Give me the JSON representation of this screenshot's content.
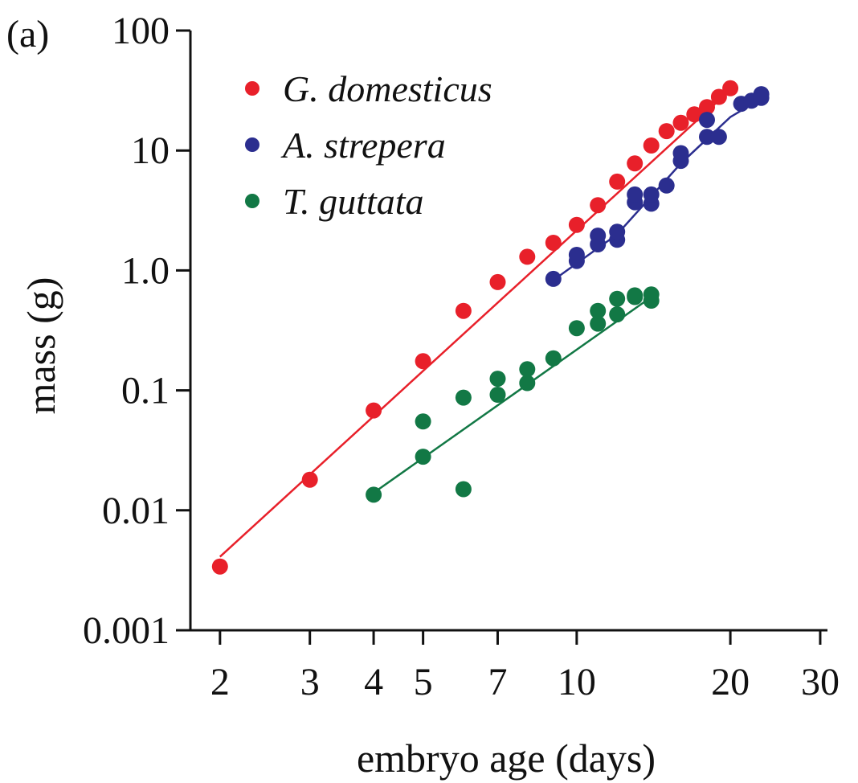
{
  "panel_label": "(a)",
  "chart_data": {
    "type": "scatter",
    "xlabel": "embryo age (days)",
    "ylabel": "mass (g)",
    "x_scale": "log",
    "y_scale": "log",
    "xlim": [
      1.75,
      31
    ],
    "ylim": [
      0.001,
      100
    ],
    "x_ticks": [
      2,
      3,
      4,
      5,
      7,
      10,
      20,
      30
    ],
    "x_tick_labels": [
      "2",
      "3",
      "4",
      "5",
      "7",
      "10",
      "20",
      "30"
    ],
    "y_ticks": [
      0.001,
      0.01,
      0.1,
      1,
      10,
      100
    ],
    "y_tick_labels": [
      "0.001",
      "0.01",
      "0.1",
      "1.0",
      "10",
      "100"
    ],
    "grid": false,
    "legend_position": "top-left",
    "series": [
      {
        "name": "G. domesticus",
        "color": "#e8202a",
        "points": [
          [
            2,
            0.0034
          ],
          [
            3,
            0.018
          ],
          [
            4,
            0.068
          ],
          [
            5,
            0.175
          ],
          [
            6,
            0.46
          ],
          [
            7,
            0.8
          ],
          [
            8,
            1.3
          ],
          [
            9,
            1.7
          ],
          [
            10,
            2.4
          ],
          [
            11,
            3.5
          ],
          [
            12,
            5.5
          ],
          [
            13,
            7.8
          ],
          [
            14,
            11
          ],
          [
            15,
            14.5
          ],
          [
            16,
            17
          ],
          [
            17,
            20
          ],
          [
            18,
            23
          ],
          [
            19,
            28
          ],
          [
            20,
            33
          ]
        ],
        "fit": [
          [
            2,
            0.0041
          ],
          [
            20,
            32
          ]
        ]
      },
      {
        "name": "A. strepera",
        "color": "#2b2e8f",
        "points": [
          [
            9,
            0.85
          ],
          [
            10,
            1.2
          ],
          [
            10,
            1.35
          ],
          [
            11,
            1.65
          ],
          [
            11,
            1.95
          ],
          [
            12,
            1.8
          ],
          [
            12,
            2.1
          ],
          [
            13,
            3.7
          ],
          [
            13,
            4.3
          ],
          [
            14,
            3.6
          ],
          [
            14,
            4.3
          ],
          [
            15,
            5.1
          ],
          [
            16,
            8.2
          ],
          [
            16,
            9.5
          ],
          [
            18,
            13
          ],
          [
            18,
            18
          ],
          [
            19,
            13
          ],
          [
            21,
            24.5
          ],
          [
            22,
            26
          ],
          [
            23,
            27.5
          ],
          [
            23,
            29.5
          ]
        ],
        "fit": [
          [
            9,
            0.83
          ],
          [
            12,
            2.0
          ],
          [
            16,
            7.8
          ],
          [
            20,
            19
          ],
          [
            23,
            27
          ]
        ]
      },
      {
        "name": "T. guttata",
        "color": "#127845",
        "points": [
          [
            4,
            0.0135
          ],
          [
            5,
            0.028
          ],
          [
            5,
            0.055
          ],
          [
            6,
            0.015
          ],
          [
            6,
            0.087
          ],
          [
            7,
            0.092
          ],
          [
            7,
            0.125
          ],
          [
            8,
            0.115
          ],
          [
            8,
            0.15
          ],
          [
            9,
            0.185
          ],
          [
            10,
            0.33
          ],
          [
            11,
            0.36
          ],
          [
            11,
            0.46
          ],
          [
            12,
            0.43
          ],
          [
            12,
            0.58
          ],
          [
            13,
            0.6
          ],
          [
            13,
            0.62
          ],
          [
            14,
            0.56
          ],
          [
            14,
            0.63
          ]
        ],
        "fit": [
          [
            4,
            0.014
          ],
          [
            14,
            0.6
          ]
        ]
      }
    ]
  }
}
